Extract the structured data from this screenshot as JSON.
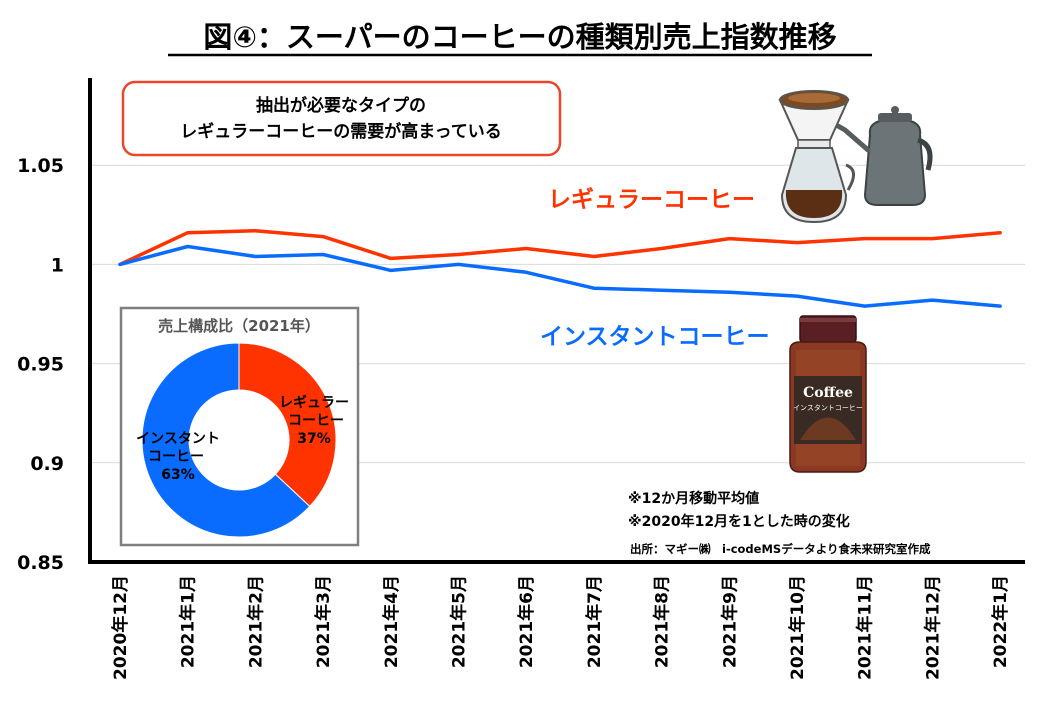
{
  "colors": {
    "regular": "#ff3300",
    "instant": "#0a6cff",
    "callout_border": "#e8472a",
    "pie_border": "#7f7f7f"
  },
  "chart_data": {
    "type": "line",
    "title": "図④：スーパーのコーヒーの種類別売上指数推移",
    "categories": [
      "2020年12月",
      "2021年1月",
      "2021年2月",
      "2021年3月",
      "2021年4月",
      "2021年5月",
      "2021年6月",
      "2021年7月",
      "2021年8月",
      "2021年9月",
      "2021年10月",
      "2021年11月",
      "2021年12月",
      "2022年1月"
    ],
    "y_ticks": [
      "0.85",
      "0.9",
      "0.95",
      "1",
      "1.05"
    ],
    "ylim": [
      0.85,
      1.1
    ],
    "grid": true,
    "series": [
      {
        "name": "レギュラーコーヒー",
        "color": "#ff3300",
        "values": [
          1.0,
          1.016,
          1.017,
          1.014,
          1.003,
          1.005,
          1.008,
          1.004,
          1.008,
          1.013,
          1.011,
          1.013,
          1.013,
          1.016
        ]
      },
      {
        "name": "インスタントコーヒー",
        "color": "#0a6cff",
        "values": [
          1.0,
          1.009,
          1.004,
          1.005,
          0.997,
          1.0,
          0.996,
          0.988,
          0.987,
          0.986,
          0.984,
          0.979,
          0.982,
          0.979
        ]
      }
    ]
  },
  "callout": {
    "line1": "抽出が必要なタイプの",
    "line2": "レギュラーコーヒーの需要が高まっている"
  },
  "pie": {
    "title": "売上構成比（2021年）",
    "slices": [
      {
        "label_lines": [
          "レギュラー",
          "コーヒー",
          "37%"
        ],
        "value": 37,
        "color": "#ff3300"
      },
      {
        "label_lines": [
          "インスタント",
          "コーヒー",
          "63%"
        ],
        "value": 63,
        "color": "#0a6cff"
      }
    ]
  },
  "notes": {
    "line1": "※12か月移動平均値",
    "line2": "※2020年12月を1とした時の変化",
    "source": "出所：マギー㈱　i-codeMSデータより食未来研究室作成"
  },
  "jar_label": {
    "brand": "Coffee",
    "sub": "インスタントコーヒー"
  }
}
